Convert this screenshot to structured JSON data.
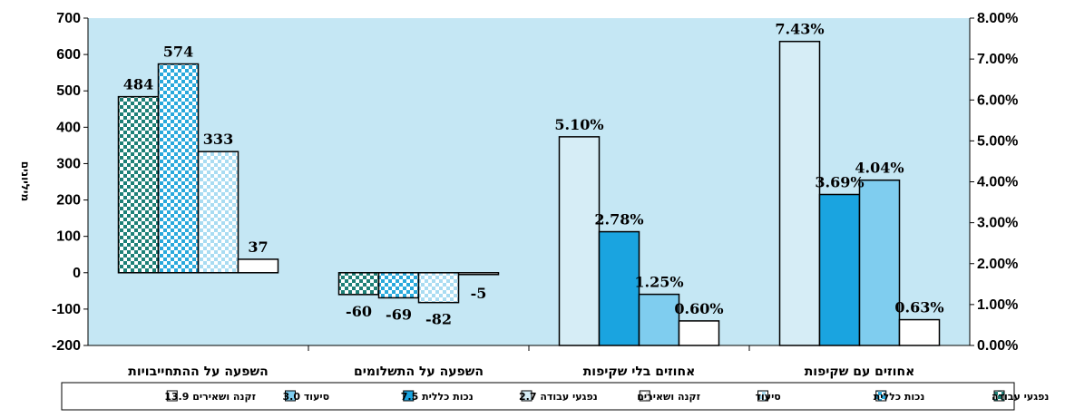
{
  "chart_data": {
    "type": "bar",
    "ylabel": "מיליונים",
    "left_axis": {
      "ylim": [
        -200,
        700
      ],
      "ticks": [
        "700",
        "600",
        "500",
        "400",
        "300",
        "200",
        "100",
        "0",
        "-100",
        "-200"
      ]
    },
    "right_axis": {
      "ylim": [
        0,
        8
      ],
      "ticks": [
        "8.00%",
        "7.00%",
        "6.00%",
        "5.00%",
        "4.00%",
        "3.00%",
        "2.00%",
        "1.00%",
        "0.00%"
      ]
    },
    "categories": [
      "השפעה על ההתחייבויות",
      "השפעה על התשלומים",
      "אחוזים בלי שקיפות",
      "אחוזים עם שקיפות"
    ],
    "groups": [
      {
        "category": "השפעה על ההתחייבויות",
        "axis": "left",
        "values": [
          484,
          574,
          333,
          37
        ],
        "labels": [
          "484",
          "574",
          "333",
          "37"
        ],
        "styles": [
          "check-dark",
          "check-mid",
          "check-light",
          "white"
        ]
      },
      {
        "category": "השפעה על התשלומים",
        "axis": "left",
        "values": [
          -60,
          -69,
          -82,
          -5
        ],
        "labels": [
          "-60",
          "-69",
          "-82",
          "-5"
        ],
        "styles": [
          "check-dark",
          "check-mid",
          "check-light",
          "white"
        ]
      },
      {
        "category": "אחוזים בלי שקיפות",
        "axis": "right",
        "values": [
          5.1,
          2.78,
          1.25,
          0.6
        ],
        "labels": [
          "5.10%",
          "2.78%",
          "1.25%",
          "0.60%"
        ],
        "styles": [
          "pale",
          "blue",
          "lightblue",
          "white"
        ]
      },
      {
        "category": "אחוזים עם שקיפות",
        "axis": "right",
        "values": [
          7.43,
          3.69,
          4.04,
          0.63
        ],
        "labels": [
          "7.43%",
          "3.69%",
          "4.04%",
          "0.63%"
        ],
        "styles": [
          "pale",
          "blue",
          "lightblue",
          "white"
        ]
      }
    ],
    "legend": {
      "placement": "bottom",
      "entries": [
        {
          "label": "זקנה ושאירים 13.9",
          "style": "white"
        },
        {
          "label": "סיעוד 3.0",
          "style": "lightblue"
        },
        {
          "label": "נכות כללית 7.5",
          "style": "blue"
        },
        {
          "label": "נפגעי עבודה 2.7",
          "style": "pale"
        },
        {
          "label": "זקנה ושאירים",
          "style": "check-white"
        },
        {
          "label": "סיעוד",
          "style": "check-light"
        },
        {
          "label": "נכות כללית",
          "style": "check-mid"
        },
        {
          "label": "נפגעי עבודה",
          "style": "check-dark"
        }
      ]
    },
    "grid": false,
    "colors": {
      "plot_bg": "#c5e7f4",
      "check-dark": "#1d8077",
      "check-mid": "#29a9dc",
      "check-light": "#a9dcf2",
      "blue": "#1aa4e0",
      "lightblue": "#7fcdef",
      "pale": "#d6edf6",
      "white": "#ffffff"
    }
  }
}
